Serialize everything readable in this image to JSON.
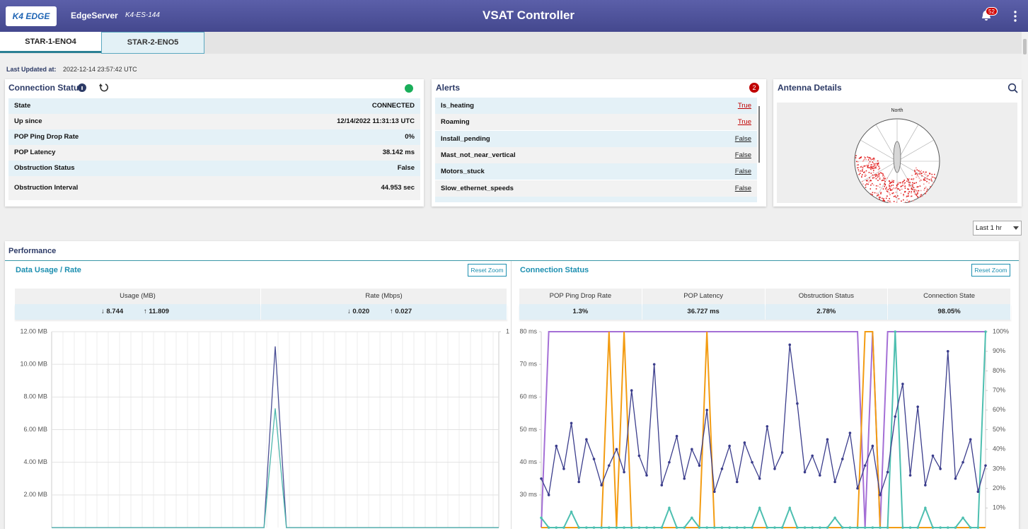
{
  "header": {
    "logo": "K4 EDGE",
    "app": "EdgeServer",
    "device": "K4-ES-144",
    "title": "VSAT Controller",
    "notifications": "52"
  },
  "tabs": [
    "STAR-1-ENO4",
    "STAR-2-ENO5"
  ],
  "last_updated": {
    "label": "Last Updated at:",
    "value": "2022-12-14 23:57:42 UTC"
  },
  "connection_status": {
    "title": "Connection Status",
    "rows": [
      [
        "State",
        "CONNECTED"
      ],
      [
        "Up since",
        "12/14/2022 11:31:13 UTC"
      ],
      [
        "POP Ping Drop Rate",
        "0%"
      ],
      [
        "POP Latency",
        "38.142 ms"
      ],
      [
        "Obstruction Status",
        "False"
      ],
      [
        "Obstruction Interval",
        "44.953 sec"
      ]
    ]
  },
  "alerts": {
    "title": "Alerts",
    "count": "2",
    "rows": [
      {
        "name": "Is_heating",
        "value": "True",
        "color": "#c00000"
      },
      {
        "name": "Roaming",
        "value": "True",
        "color": "#c00000"
      },
      {
        "name": "Install_pending",
        "value": "False",
        "color": "#222222"
      },
      {
        "name": "Mast_not_near_vertical",
        "value": "False",
        "color": "#222222"
      },
      {
        "name": "Motors_stuck",
        "value": "False",
        "color": "#222222"
      },
      {
        "name": "Slow_ethernet_speeds",
        "value": "False",
        "color": "#222222"
      }
    ]
  },
  "antenna": {
    "title": "Antenna Details",
    "north": "North"
  },
  "time_range": "Last 1 hr",
  "performance": {
    "title": "Performance"
  },
  "data_usage": {
    "title": "Data Usage / Rate",
    "reset": "Reset Zoom",
    "columns": [
      "Usage (MB)",
      "Rate (Mbps)"
    ],
    "values": [
      [
        "↓ 8.744",
        "↑ 11.809"
      ],
      [
        "↓ 0.020",
        "↑ 0.027"
      ]
    ],
    "chart": {
      "type": "line",
      "ylim": [
        0,
        12
      ],
      "yticks": [
        {
          "value": 12,
          "label": "12.00 MB"
        },
        {
          "value": 10,
          "label": "10.00 MB"
        },
        {
          "value": 8,
          "label": "8.00 MB"
        },
        {
          "value": 6,
          "label": "6.00 MB"
        },
        {
          "value": 4,
          "label": "4.00 MB"
        },
        {
          "value": 2,
          "label": "2.00 MB"
        }
      ],
      "y2lim": [
        0,
        1
      ],
      "y2ticks": [
        1
      ],
      "grid": true,
      "series": [
        {
          "color": "#4b4f95",
          "values": [
            0,
            0,
            0,
            0,
            0,
            0,
            0,
            0,
            0,
            0,
            0,
            0,
            0,
            0,
            0,
            0,
            0,
            0,
            0,
            0,
            11.1,
            0,
            0,
            0,
            0,
            0,
            0,
            0,
            0,
            0,
            0,
            0,
            0,
            0,
            0,
            0,
            0,
            0,
            0,
            0,
            0
          ],
          "markers": false
        },
        {
          "color": "#4db6ac",
          "values": [
            0,
            0,
            0,
            0,
            0,
            0,
            0,
            0,
            0,
            0,
            0,
            0,
            0,
            0,
            0,
            0,
            0,
            0,
            0,
            0,
            7.3,
            0,
            0,
            0,
            0,
            0,
            0,
            0,
            0,
            0,
            0,
            0,
            0,
            0,
            0,
            0,
            0,
            0,
            0,
            0,
            0
          ],
          "markers": false
        }
      ]
    }
  },
  "connection_chart": {
    "title": "Connection Status",
    "reset": "Reset Zoom",
    "columns": [
      "POP Ping Drop Rate",
      "POP Latency",
      "Obstruction Status",
      "Connection State"
    ],
    "values": [
      "1.3%",
      "36.727 ms",
      "2.78%",
      "98.05%"
    ],
    "chart": {
      "type": "line",
      "ylim": [
        20,
        80
      ],
      "yticks": [
        {
          "value": 80,
          "label": "80 ms"
        },
        {
          "value": 70,
          "label": "70 ms"
        },
        {
          "value": 60,
          "label": "60 ms"
        },
        {
          "value": 50,
          "label": "50 ms"
        },
        {
          "value": 40,
          "label": "40 ms"
        },
        {
          "value": 30,
          "label": "30 ms"
        }
      ],
      "y2lim": [
        0,
        100
      ],
      "y2ticks": [
        {
          "value": 100,
          "label": "100%"
        },
        {
          "value": 90,
          "label": "90%"
        },
        {
          "value": 80,
          "label": "80%"
        },
        {
          "value": 70,
          "label": "70%"
        },
        {
          "value": 60,
          "label": "60%"
        },
        {
          "value": 50,
          "label": "50%"
        },
        {
          "value": 40,
          "label": "40%"
        },
        {
          "value": 30,
          "label": "30%"
        },
        {
          "value": 20,
          "label": "20%"
        },
        {
          "value": 10,
          "label": "10%"
        }
      ],
      "grid": false,
      "series": [
        {
          "color": "#a46fd6",
          "axis": "y2",
          "markers": false,
          "values": [
            0,
            100,
            100,
            100,
            100,
            100,
            100,
            100,
            100,
            100,
            100,
            100,
            100,
            100,
            100,
            100,
            100,
            100,
            100,
            100,
            100,
            100,
            100,
            100,
            100,
            100,
            100,
            100,
            100,
            100,
            100,
            100,
            100,
            100,
            100,
            100,
            100,
            100,
            100,
            100,
            100,
            100,
            100,
            0,
            100,
            0,
            100,
            100,
            100,
            100,
            100,
            100,
            100,
            100,
            100,
            100,
            100,
            100,
            100,
            100
          ]
        },
        {
          "color": "#f39c12",
          "axis": "y2",
          "markers": false,
          "values": [
            0,
            0,
            0,
            0,
            0,
            0,
            0,
            0,
            0,
            100,
            0,
            100,
            0,
            0,
            0,
            0,
            0,
            0,
            0,
            0,
            0,
            0,
            100,
            0,
            0,
            0,
            0,
            0,
            0,
            0,
            0,
            0,
            0,
            0,
            0,
            0,
            0,
            0,
            0,
            0,
            0,
            0,
            0,
            100,
            100,
            0,
            0,
            0,
            0,
            0,
            0,
            0,
            0,
            0,
            0,
            0,
            0,
            0,
            0,
            0
          ]
        },
        {
          "color": "#4dbfb0",
          "axis": "y2",
          "markers": true,
          "values": [
            5,
            0,
            0,
            0,
            8,
            0,
            0,
            0,
            0,
            0,
            0,
            0,
            0,
            0,
            0,
            0,
            0,
            10,
            0,
            0,
            5,
            0,
            0,
            0,
            0,
            0,
            0,
            0,
            0,
            10,
            0,
            0,
            0,
            10,
            0,
            0,
            0,
            0,
            0,
            5,
            0,
            0,
            0,
            0,
            0,
            0,
            0,
            100,
            0,
            0,
            0,
            10,
            0,
            0,
            0,
            0,
            5,
            0,
            0,
            100
          ]
        },
        {
          "color": "#3b3d8c",
          "markers": true,
          "values": [
            35,
            30,
            45,
            38,
            52,
            34,
            47,
            41,
            33,
            39,
            44,
            37,
            62,
            42,
            36,
            70,
            33,
            40,
            48,
            35,
            44,
            39,
            56,
            31,
            38,
            45,
            34,
            46,
            40,
            35,
            51,
            38,
            43,
            76,
            58,
            37,
            42,
            36,
            47,
            34,
            41,
            49,
            32,
            39,
            45,
            30,
            37,
            54,
            64,
            36,
            57,
            33,
            42,
            38,
            74,
            35,
            40,
            47,
            31,
            39
          ]
        }
      ]
    }
  }
}
